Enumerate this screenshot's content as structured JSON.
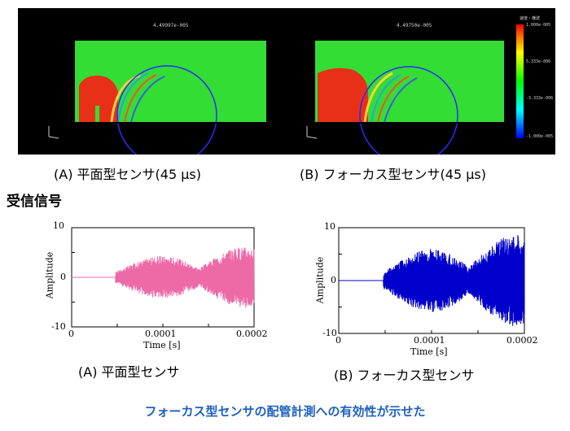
{
  "simulation": {
    "left_title": "4.49997e-005",
    "right_title": "4.49750e-005",
    "colorbar": {
      "title": "速度・横波",
      "labels": [
        "1.000e-005",
        "5.333e-006",
        "-3.333e-006",
        "-1.000e-005"
      ]
    },
    "colors": {
      "background": "#000000",
      "field": "#33dd33",
      "hot": "#e83018",
      "ring": "#2a2aff"
    }
  },
  "captions": {
    "sim_a": "(A) 平面型センサ(45 μs)",
    "sim_b": "(B) フォーカス型センサ(45 μs)",
    "plot_a": "(A) 平面型センサ",
    "plot_b": "(B) フォーカス型センサ"
  },
  "section_heading": "受信信号",
  "chart_data": [
    {
      "type": "line",
      "series": [
        {
          "color": "#ee6aa7"
        }
      ],
      "xlabel": "Time [s]",
      "ylabel": "Amplitude",
      "xlim": [
        0,
        0.0002
      ],
      "ylim": [
        -10,
        10
      ],
      "xticks": [
        "0",
        "0.0001",
        "0.0002"
      ],
      "yticks": [
        "10",
        "0",
        "-10"
      ],
      "signal": {
        "onset": 4.8e-05,
        "peak_amplitude": 6.5
      }
    },
    {
      "type": "line",
      "series": [
        {
          "color": "#0000cc"
        }
      ],
      "xlabel": "Time [s]",
      "ylabel": "Amplitude",
      "xlim": [
        0,
        0.0002
      ],
      "ylim": [
        -10,
        10
      ],
      "xticks": [
        "0",
        "0.0001",
        "0.0002"
      ],
      "yticks": [
        "10",
        "0",
        "-10"
      ],
      "signal": {
        "onset": 4.8e-05,
        "peak_amplitude": 9
      }
    }
  ],
  "conclusion": "フォーカス型センサの配管計測への有効性が示せた"
}
